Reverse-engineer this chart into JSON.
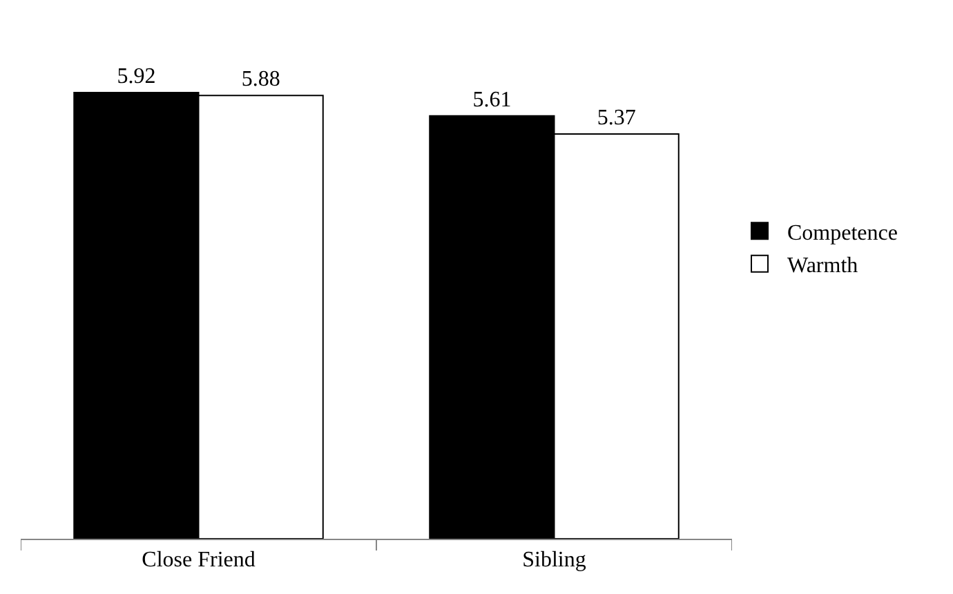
{
  "chart_data": {
    "type": "bar",
    "categories": [
      "Close Friend",
      "Sibling"
    ],
    "series": [
      {
        "name": "Competence",
        "color": "#000000",
        "values": [
          5.92,
          5.61
        ]
      },
      {
        "name": "Warmth",
        "color": "#ffffff",
        "values": [
          5.88,
          5.37
        ]
      }
    ],
    "data_labels": true,
    "legend": "right"
  }
}
